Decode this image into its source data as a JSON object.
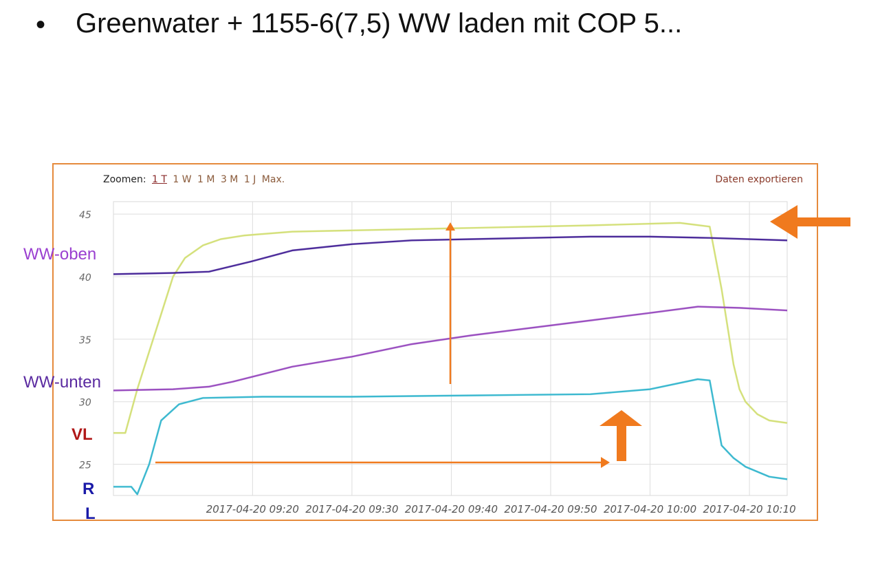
{
  "slide": {
    "bullet": "•",
    "title": "Greenwater + 1155-6(7,5) WW laden mit COP 5..."
  },
  "toolbar": {
    "zoom_label": "Zoomen:",
    "zoom_options": [
      "1 T",
      "1 W",
      "1 M",
      "3 M",
      "1 J",
      "Max."
    ],
    "active_zoom": "1 T",
    "export_label": "Daten exportieren"
  },
  "annotations": {
    "ww_oben": "WW-oben",
    "ww_unten": "WW-unten",
    "vl": "VL",
    "rl_r": "R",
    "rl_l": "L"
  },
  "colors": {
    "frame": "#e58a3c",
    "arrow": "#f07a1e",
    "vl": "#d4e07a",
    "ww_oben": "#4b2a9a",
    "ww_unten": "#9a4fc0",
    "rl": "#3ab8cf",
    "label_ww_oben": "#9a3fd0",
    "label_ww_unten": "#5a2aa0",
    "label_vl": "#b01818",
    "label_rl": "#1a1aa8"
  },
  "chart_data": {
    "type": "line",
    "xlim": [
      9.1,
      10.23
    ],
    "ylim": [
      22.5,
      46
    ],
    "x_ticks": [
      9.3333,
      9.5,
      9.6667,
      9.8333,
      10.0,
      10.1667
    ],
    "x_tick_labels": [
      "2017-04-20 09:20",
      "2017-04-20 09:30",
      "2017-04-20 09:40",
      "2017-04-20 09:50",
      "2017-04-20 10:00",
      "2017-04-20 10:10"
    ],
    "y_ticks": [
      25,
      30,
      35,
      40,
      45
    ],
    "grid": true,
    "series": [
      {
        "key": "vl",
        "x": [
          9.1,
          9.12,
          9.14,
          9.16,
          9.18,
          9.2,
          9.22,
          9.25,
          9.28,
          9.32,
          9.4,
          9.5,
          9.7,
          9.9,
          10.05,
          10.1,
          10.12,
          10.14,
          10.15,
          10.16,
          10.18,
          10.2,
          10.23
        ],
        "y": [
          27.5,
          27.5,
          31.0,
          34.0,
          37.0,
          40.0,
          41.5,
          42.5,
          43.0,
          43.3,
          43.6,
          43.7,
          43.9,
          44.1,
          44.3,
          44.0,
          39.0,
          33.0,
          31.0,
          30.0,
          29.0,
          28.5,
          28.3
        ]
      },
      {
        "key": "ww_oben",
        "x": [
          9.1,
          9.2,
          9.26,
          9.33,
          9.4,
          9.5,
          9.6,
          9.7,
          9.8,
          9.9,
          10.0,
          10.1,
          10.23
        ],
        "y": [
          40.2,
          40.3,
          40.4,
          41.2,
          42.1,
          42.6,
          42.9,
          43.0,
          43.1,
          43.2,
          43.2,
          43.1,
          42.9
        ]
      },
      {
        "key": "ww_unten",
        "x": [
          9.1,
          9.2,
          9.26,
          9.3,
          9.4,
          9.5,
          9.6,
          9.7,
          9.8,
          9.9,
          10.0,
          10.08,
          10.15,
          10.23
        ],
        "y": [
          30.9,
          31.0,
          31.2,
          31.6,
          32.8,
          33.6,
          34.6,
          35.3,
          35.9,
          36.5,
          37.1,
          37.6,
          37.5,
          37.3
        ]
      },
      {
        "key": "rl",
        "x": [
          9.1,
          9.13,
          9.14,
          9.16,
          9.18,
          9.21,
          9.25,
          9.35,
          9.5,
          9.7,
          9.9,
          10.0,
          10.08,
          10.1,
          10.12,
          10.14,
          10.16,
          10.2,
          10.23
        ],
        "y": [
          23.2,
          23.2,
          22.6,
          25.0,
          28.5,
          29.8,
          30.3,
          30.4,
          30.4,
          30.5,
          30.6,
          31.0,
          31.8,
          31.7,
          26.5,
          25.5,
          24.8,
          24.0,
          23.8
        ]
      }
    ]
  }
}
